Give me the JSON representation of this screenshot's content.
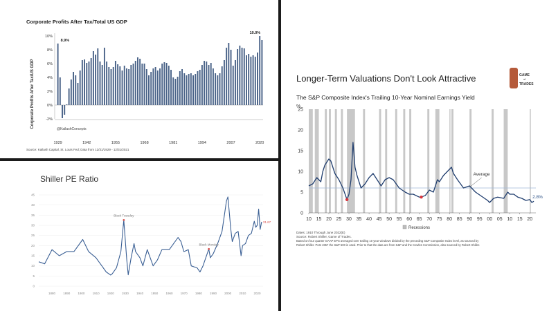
{
  "charts": [
    {
      "id": "profits",
      "type": "bar",
      "title": "Corporate Profits After Tax/Total US GDP",
      "ylabel": "Corporate Profits After Tax/US GDP",
      "source": "Source: Kailash Capital, St. Louis Fed; Data from 12/31/1929 - 12/31/2021",
      "watermark": "@KailashConcepts",
      "ylim": [
        -2,
        10
      ],
      "yticks": [
        "10%",
        "8%",
        "6%",
        "4%",
        "2%",
        "0%",
        "-2%"
      ],
      "xticks": [
        "1929",
        "1942",
        "1955",
        "1968",
        "1981",
        "1994",
        "2007",
        "2020"
      ],
      "annotations": [
        {
          "text": "8.9%",
          "x": 1929,
          "y": 8.9
        },
        {
          "text": "10.0%",
          "x": 2021,
          "y": 10.0
        }
      ],
      "x_start": 1929,
      "values": [
        8.9,
        4.0,
        -1.9,
        -1.4,
        0.1,
        2.4,
        3.7,
        4.8,
        4.3,
        3.2,
        5.0,
        6.5,
        6.6,
        6.1,
        6.3,
        6.8,
        7.8,
        7.3,
        8.2,
        6.3,
        5.8,
        8.3,
        6.3,
        5.5,
        5.2,
        5.5,
        6.4,
        5.9,
        5.6,
        5.0,
        5.7,
        5.3,
        5.2,
        5.8,
        6.0,
        6.4,
        6.9,
        6.7,
        6.0,
        6.0,
        5.2,
        4.3,
        4.8,
        5.3,
        5.5,
        5.0,
        5.3,
        6.0,
        6.2,
        6.1,
        5.7,
        5.1,
        4.0,
        3.8,
        4.1,
        4.9,
        5.2,
        4.6,
        4.3,
        4.5,
        4.6,
        4.3,
        4.5,
        4.9,
        5.1,
        5.8,
        6.4,
        6.3,
        5.8,
        6.1,
        5.3,
        4.6,
        4.3,
        4.6,
        5.6,
        6.5,
        8.3,
        9.0,
        8.0,
        5.7,
        6.5,
        8.1,
        8.6,
        8.3,
        8.2,
        7.2,
        7.4,
        7.0,
        7.2,
        7.0,
        7.6,
        10.0,
        9.4
      ]
    },
    {
      "id": "shiller",
      "type": "line",
      "title": "Shiller PE Ratio",
      "ylim": [
        0,
        45
      ],
      "yticks": [
        "45",
        "40",
        "35",
        "30",
        "25",
        "20",
        "15",
        "10",
        "5",
        "0"
      ],
      "xticks": [
        "1880",
        "1890",
        "1900",
        "1910",
        "1920",
        "1930",
        "1940",
        "1950",
        "1960",
        "1970",
        "1980",
        "1990",
        "2000",
        "2010",
        "2020"
      ],
      "annotations": [
        {
          "text": "Black Tuesday",
          "x": 1929,
          "y": 32.6
        },
        {
          "text": "Black Monday",
          "x": 1987,
          "y": 18.3
        },
        {
          "text": "31.67",
          "x": 2023,
          "y": 31.7
        }
      ],
      "x": [
        1871,
        1875,
        1880,
        1885,
        1890,
        1895,
        1901,
        1905,
        1910,
        1914,
        1917,
        1920,
        1921,
        1924,
        1927,
        1929,
        1931,
        1932,
        1934,
        1936,
        1937,
        1940,
        1942,
        1945,
        1949,
        1952,
        1955,
        1960,
        1963,
        1966,
        1968,
        1970,
        1973,
        1975,
        1979,
        1981,
        1983,
        1987,
        1988,
        1990,
        1993,
        1996,
        1999,
        2000,
        2002,
        2003,
        2005,
        2007,
        2009,
        2010,
        2012,
        2014,
        2016,
        2018,
        2019,
        2020,
        2021,
        2022,
        2023
      ],
      "values": [
        12.0,
        11.0,
        18.0,
        15.0,
        17.0,
        17.0,
        23.0,
        17.0,
        14.0,
        10.0,
        7.0,
        5.5,
        6.0,
        9.0,
        17.0,
        32.6,
        13.0,
        5.6,
        14.0,
        21.0,
        17.0,
        14.0,
        10.0,
        18.0,
        10.0,
        13.0,
        18.0,
        18.0,
        21.0,
        24.0,
        22.0,
        17.0,
        18.0,
        10.0,
        9.0,
        7.0,
        10.0,
        18.3,
        14.0,
        16.0,
        21.0,
        27.0,
        42.0,
        44.0,
        28.0,
        22.0,
        26.0,
        27.0,
        15.0,
        20.0,
        21.0,
        25.0,
        26.0,
        32.0,
        29.0,
        30.0,
        38.0,
        28.0,
        31.7
      ]
    },
    {
      "id": "earnings",
      "type": "line",
      "title": "Longer-Term Valuations Don't Look Attractive",
      "subtitle": "The S&P Composite Index's Trailing 10-Year Nominal Earnings Yield",
      "yunit": "%",
      "logo": [
        "GAME",
        "of",
        "TRADES"
      ],
      "average_label": "Average",
      "average_value": 6.0,
      "legend_recessions": "Recessions",
      "notes": [
        "Dates: 1910 Through June 2022(E)",
        "Source: Robert Shiller, Game of Trades.",
        "Based on four quarter GAAP EPS averaged over trailing 10 year windows divided by the preceding S&P Composite Index level, as sourced by",
        "Robert Shiller. Post 1957 the S&P 500 is used. Prior to that the data are from S&P and the Cowles Commission, also sourced by Robert Shiller."
      ],
      "ylim": [
        0,
        25
      ],
      "yticks": [
        "25",
        "20",
        "15",
        "10",
        "5",
        "0"
      ],
      "xticks": [
        "10",
        "15",
        "20",
        "25",
        "30",
        "35",
        "40",
        "45",
        "50",
        "55",
        "60",
        "65",
        "70",
        "75",
        "80",
        "85",
        "90",
        "95",
        "00",
        "05",
        "10",
        "15",
        "20"
      ],
      "end_label": "2.8%",
      "x": [
        1910,
        1912,
        1914,
        1916,
        1917,
        1918,
        1920,
        1921,
        1923,
        1925,
        1927,
        1929,
        1930,
        1931,
        1932,
        1933,
        1934,
        1936,
        1938,
        1940,
        1942,
        1944,
        1946,
        1948,
        1950,
        1952,
        1955,
        1958,
        1960,
        1962,
        1965,
        1966,
        1968,
        1970,
        1972,
        1974,
        1975,
        1977,
        1979,
        1981,
        1982,
        1984,
        1987,
        1990,
        1993,
        1996,
        1999,
        2000,
        2002,
        2004,
        2007,
        2009,
        2010,
        2012,
        2014,
        2016,
        2018,
        2020,
        2021,
        2022
      ],
      "values": [
        6.5,
        7.0,
        8.5,
        7.5,
        10.0,
        11.5,
        13.0,
        12.5,
        9.5,
        8.0,
        6.0,
        3.2,
        4.5,
        8.0,
        17.0,
        11.0,
        9.0,
        6.0,
        7.0,
        8.5,
        9.5,
        8.0,
        6.5,
        8.0,
        8.5,
        8.0,
        6.0,
        5.0,
        4.5,
        4.5,
        3.8,
        3.8,
        4.2,
        5.5,
        5.0,
        8.0,
        7.5,
        9.0,
        10.0,
        11.0,
        9.5,
        8.0,
        6.0,
        6.5,
        5.0,
        4.0,
        3.0,
        2.5,
        3.5,
        3.8,
        3.5,
        5.0,
        4.5,
        4.5,
        3.8,
        3.5,
        3.0,
        3.2,
        2.5,
        2.8
      ],
      "min_points": [
        {
          "x": 1929,
          "y": 3.2
        },
        {
          "x": 1966,
          "y": 3.8
        }
      ],
      "recessions": [
        [
          1910,
          1912
        ],
        [
          1913,
          1915
        ],
        [
          1918,
          1919
        ],
        [
          1920,
          1921
        ],
        [
          1923,
          1924
        ],
        [
          1926,
          1927
        ],
        [
          1929,
          1933
        ],
        [
          1937,
          1938
        ],
        [
          1945,
          1946
        ],
        [
          1948,
          1949
        ],
        [
          1953,
          1954
        ],
        [
          1957,
          1958
        ],
        [
          1960,
          1961
        ],
        [
          1969,
          1970
        ],
        [
          1973,
          1975
        ],
        [
          1980,
          1980.5
        ],
        [
          1981,
          1982
        ],
        [
          1990,
          1991
        ],
        [
          2001,
          2002
        ],
        [
          2007,
          2009
        ],
        [
          2020,
          2020.5
        ]
      ],
      "xlim": [
        1910,
        2023
      ]
    }
  ]
}
